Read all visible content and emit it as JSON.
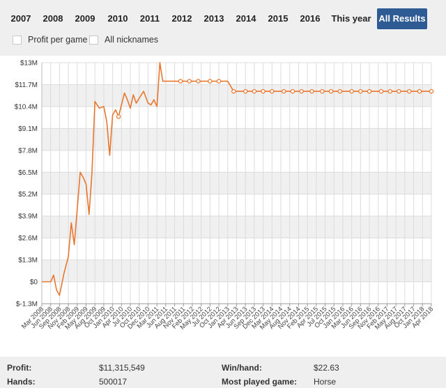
{
  "tabs": [
    {
      "label": "2007",
      "active": false
    },
    {
      "label": "2008",
      "active": false
    },
    {
      "label": "2009",
      "active": false
    },
    {
      "label": "2010",
      "active": false
    },
    {
      "label": "2011",
      "active": false
    },
    {
      "label": "2012",
      "active": false
    },
    {
      "label": "2013",
      "active": false
    },
    {
      "label": "2014",
      "active": false
    },
    {
      "label": "2015",
      "active": false
    },
    {
      "label": "2016",
      "active": false
    },
    {
      "label": "This year",
      "active": false
    },
    {
      "label": "All Results",
      "active": true
    }
  ],
  "options": {
    "profit_per_game": {
      "label": "Profit per game",
      "checked": false
    },
    "all_nicknames": {
      "label": "All nicknames",
      "checked": false
    }
  },
  "colors": {
    "accent": "#2e5b94",
    "line": "#e8762d",
    "band": "#f0f0f0"
  },
  "chart_data": {
    "type": "line",
    "title": "",
    "xlabel": "",
    "ylabel": "",
    "ylim": [
      -1.3,
      13
    ],
    "yticks": [
      "$13M",
      "$11.7M",
      "$10.4M",
      "$9.1M",
      "$7.8M",
      "$6.5M",
      "$5.2M",
      "$3.9M",
      "$2.6M",
      "$1.3M",
      "$0",
      "$-1.3M"
    ],
    "xticks": [
      "Mar 2008",
      "Jun 2008",
      "Sep 2008",
      "Nov 2008",
      "Feb 2009",
      "May 2009",
      "Aug 2009",
      "Oct 2009",
      "Jan 2010",
      "Apr 2010",
      "Jul 2010",
      "Oct 2010",
      "Dec 2010",
      "Mar 2011",
      "Jun 2011",
      "Aug 2011",
      "Nov 2011",
      "Feb 2012",
      "May 2012",
      "Jul 2012",
      "Oct 2012",
      "Jan 2013",
      "Apr 2013",
      "Jun 2013",
      "Sep 2013",
      "Dec 2013",
      "Mar 2014",
      "May 2014",
      "Aug 2014",
      "Nov 2014",
      "Feb 2015",
      "Apr 2015",
      "Jul 2015",
      "Oct 2015",
      "Jan 2016",
      "Mar 2016",
      "Jun 2016",
      "Sep 2016",
      "Nov 2016",
      "Feb 2017",
      "May 2017",
      "Aug 2017",
      "Oct 2017",
      "Jan 2018",
      "Apr 2018"
    ],
    "series": [
      {
        "x": [
          "Mar 2008",
          "Jun 2008",
          "Jul 2008",
          "Aug 2008",
          "Sep 2008",
          "Oct 2008",
          "Nov 2008",
          "Dec 2008",
          "Jan 2009",
          "Feb 2009",
          "Mar 2009",
          "Apr 2009",
          "May 2009",
          "Jun 2009",
          "Jul 2009",
          "Aug 2009",
          "Sep 2009",
          "Oct 2009",
          "Nov 2009",
          "Dec 2009",
          "Jan 2010",
          "Feb 2010",
          "Mar 2010",
          "Apr 2010",
          "May 2010",
          "Jun 2010",
          "Jul 2010",
          "Aug 2010",
          "Sep 2010",
          "Oct 2010",
          "Nov 2010",
          "Dec 2010",
          "Jan 2011",
          "Feb 2011",
          "Mar 2011",
          "Apr 2011",
          "May 2011",
          "Jun 2011",
          "Jul 2011",
          "Aug 2011",
          "Oct 2011",
          "Jan 2012",
          "Apr 2012",
          "Jul 2012",
          "Oct 2012",
          "Dec 2012",
          "Jan 2013",
          "Mar 2013",
          "Jun 2013",
          "Sep 2013",
          "Dec 2013",
          "Mar 2014",
          "Jun 2014",
          "Sep 2014",
          "Dec 2014",
          "Mar 2015",
          "Jun 2015",
          "Sep 2015",
          "Dec 2015",
          "Mar 2016",
          "Jun 2016",
          "Sep 2016",
          "Dec 2016",
          "Mar 2017",
          "Jun 2017",
          "Sep 2017",
          "Dec 2017",
          "Mar 2018",
          "Apr 2018"
        ],
        "values": [
          0,
          0,
          0.4,
          -0.5,
          -0.8,
          0.5,
          1.5,
          3.5,
          2.2,
          4.3,
          6.5,
          6.2,
          5.8,
          4.0,
          6.5,
          10.7,
          10.3,
          10.4,
          9.5,
          7.5,
          9.9,
          10.2,
          9.8,
          10.5,
          11.2,
          10.8,
          10.3,
          11.1,
          10.6,
          10.9,
          11.3,
          10.6,
          10.5,
          10.8,
          10.4,
          13.0,
          11.9,
          11.9,
          11.9,
          11.9,
          11.9,
          11.9,
          11.9,
          11.9,
          11.9,
          11.9,
          11.9,
          11.3,
          11.3,
          11.3,
          11.3,
          11.3,
          11.3,
          11.3,
          11.3,
          11.3,
          11.3,
          11.3,
          11.3,
          11.3,
          11.3,
          11.3,
          11.3,
          11.3,
          11.3,
          11.3,
          11.3,
          11.3,
          11.3
        ],
        "markers_at": [
          "Mar 2010",
          "Oct 2011",
          "Jan 2012",
          "Apr 2012",
          "Jul 2012",
          "Oct 2012",
          "Mar 2013",
          "Jun 2013",
          "Sep 2013",
          "Dec 2013",
          "Mar 2014",
          "Jun 2014",
          "Sep 2014",
          "Dec 2014",
          "Mar 2015",
          "Jun 2015",
          "Sep 2015",
          "Dec 2015",
          "Mar 2016",
          "Jun 2016",
          "Sep 2016",
          "Dec 2016",
          "Mar 2017",
          "Jun 2017",
          "Sep 2017",
          "Dec 2017",
          "Apr 2018"
        ]
      }
    ]
  },
  "summary": {
    "profit_label": "Profit:",
    "profit_value": "$11,315,549",
    "winhand_label": "Win/hand:",
    "winhand_value": "$22.63",
    "hands_label": "Hands:",
    "hands_value": "500017",
    "game_label": "Most played game:",
    "game_value": "Horse"
  }
}
